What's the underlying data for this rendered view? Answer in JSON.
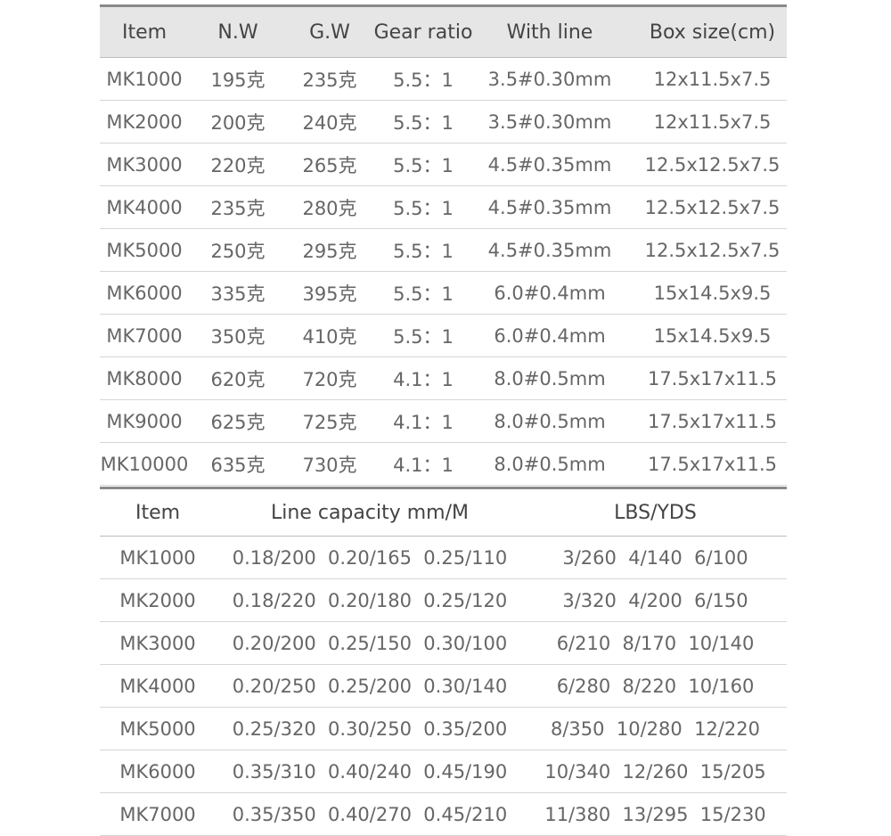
{
  "table1": {
    "headers": [
      "Item",
      "N.W",
      "G.W",
      "Gear ratio",
      "With line",
      "Box size(cm)"
    ],
    "rows": [
      [
        "MK1000",
        "195克",
        "235克",
        "5.5：1",
        "3.5#0.30mm",
        "12x11.5x7.5"
      ],
      [
        "MK2000",
        "200克",
        "240克",
        "5.5：1",
        "3.5#0.30mm",
        "12x11.5x7.5"
      ],
      [
        "MK3000",
        "220克",
        "265克",
        "5.5：1",
        "4.5#0.35mm",
        "12.5x12.5x7.5"
      ],
      [
        "MK4000",
        "235克",
        "280克",
        "5.5：1",
        "4.5#0.35mm",
        "12.5x12.5x7.5"
      ],
      [
        "MK5000",
        "250克",
        "295克",
        "5.5：1",
        "4.5#0.35mm",
        "12.5x12.5x7.5"
      ],
      [
        "MK6000",
        "335克",
        "395克",
        "5.5：1",
        "6.0#0.4mm",
        "15x14.5x9.5"
      ],
      [
        "MK7000",
        "350克",
        "410克",
        "5.5：1",
        "6.0#0.4mm",
        "15x14.5x9.5"
      ],
      [
        "MK8000",
        "620克",
        "720克",
        "4.1：1",
        "8.0#0.5mm",
        "17.5x17x11.5"
      ],
      [
        "MK9000",
        "625克",
        "725克",
        "4.1：1",
        "8.0#0.5mm",
        "17.5x17x11.5"
      ],
      [
        "MK10000",
        "635克",
        "730克",
        "4.1：1",
        "8.0#0.5mm",
        "17.5x17x11.5"
      ]
    ]
  },
  "table2": {
    "headers": [
      "Item",
      "Line capacity mm/M",
      "LBS/YDS"
    ],
    "rows": [
      [
        "MK1000",
        "0.18/200  0.20/165  0.25/110",
        "3/260  4/140  6/100"
      ],
      [
        "MK2000",
        "0.18/220  0.20/180  0.25/120",
        "3/320  4/200  6/150"
      ],
      [
        "MK3000",
        "0.20/200  0.25/150  0.30/100",
        "6/210  8/170  10/140"
      ],
      [
        "MK4000",
        "0.20/250  0.25/200  0.30/140",
        "6/280  8/220  10/160"
      ],
      [
        "MK5000",
        "0.25/320  0.30/250  0.35/200",
        "8/350  10/280  12/220"
      ],
      [
        "MK6000",
        "0.35/310  0.40/240  0.45/190",
        "10/340  12/260  15/205"
      ],
      [
        "MK7000",
        "0.35/350  0.40/270  0.45/210",
        "11/380  13/295  15/230"
      ]
    ]
  }
}
